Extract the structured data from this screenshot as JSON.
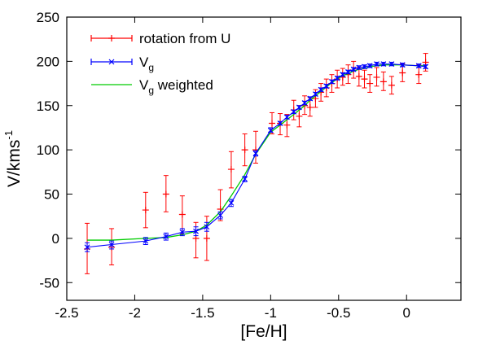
{
  "chart_data": {
    "type": "line",
    "xlabel": "[Fe/H]",
    "ylabel": {
      "base": "V/kms",
      "sup": "-1"
    },
    "xlim": [
      -2.5,
      0.4
    ],
    "ylim": [
      -70,
      250
    ],
    "xticks": [
      -2.5,
      -2,
      -1.5,
      -1,
      -0.5,
      0
    ],
    "xtick_labels": [
      "-2.5",
      "-2",
      "-1.5",
      "-1",
      "-0.5",
      "0"
    ],
    "yticks": [
      -50,
      0,
      50,
      100,
      150,
      200,
      250
    ],
    "ytick_labels": [
      "-50",
      "0",
      "50",
      "100",
      "150",
      "200",
      "250"
    ],
    "grid": false,
    "legend_position": "top-left",
    "series": [
      {
        "name": "rotation from U",
        "legend_label": {
          "base": "rotation from U",
          "sub": ""
        },
        "color": "#ff0000",
        "marker": "plus",
        "errorbars": true,
        "points": [
          {
            "x": -2.35,
            "y": -12,
            "lo": -40,
            "hi": 17
          },
          {
            "x": -2.17,
            "y": -10,
            "lo": -30,
            "hi": 11
          },
          {
            "x": -1.92,
            "y": 32,
            "lo": 12,
            "hi": 52
          },
          {
            "x": -1.77,
            "y": 50,
            "lo": 30,
            "hi": 71
          },
          {
            "x": -1.65,
            "y": 27,
            "lo": 5,
            "hi": 48
          },
          {
            "x": -1.55,
            "y": 0,
            "lo": -22,
            "hi": 18
          },
          {
            "x": -1.47,
            "y": 0,
            "lo": -25,
            "hi": 25
          },
          {
            "x": -1.37,
            "y": 33,
            "lo": 20,
            "hi": 55
          },
          {
            "x": -1.29,
            "y": 78,
            "lo": 57,
            "hi": 98
          },
          {
            "x": -1.19,
            "y": 100,
            "lo": 82,
            "hi": 118
          },
          {
            "x": -1.11,
            "y": 100,
            "lo": 85,
            "hi": 121
          },
          {
            "x": -0.99,
            "y": 130,
            "lo": 118,
            "hi": 142
          },
          {
            "x": -0.93,
            "y": 130,
            "lo": 117,
            "hi": 141
          },
          {
            "x": -0.88,
            "y": 128,
            "lo": 115,
            "hi": 140
          },
          {
            "x": -0.83,
            "y": 145,
            "lo": 134,
            "hi": 156
          },
          {
            "x": -0.79,
            "y": 138,
            "lo": 126,
            "hi": 150
          },
          {
            "x": -0.75,
            "y": 150,
            "lo": 140,
            "hi": 161
          },
          {
            "x": -0.71,
            "y": 148,
            "lo": 138,
            "hi": 159
          },
          {
            "x": -0.67,
            "y": 158,
            "lo": 148,
            "hi": 168
          },
          {
            "x": -0.63,
            "y": 165,
            "lo": 155,
            "hi": 175
          },
          {
            "x": -0.59,
            "y": 170,
            "lo": 160,
            "hi": 180
          },
          {
            "x": -0.55,
            "y": 175,
            "lo": 165,
            "hi": 185
          },
          {
            "x": -0.51,
            "y": 180,
            "lo": 170,
            "hi": 190
          },
          {
            "x": -0.47,
            "y": 182,
            "lo": 173,
            "hi": 192
          },
          {
            "x": -0.43,
            "y": 185,
            "lo": 175,
            "hi": 196
          },
          {
            "x": -0.39,
            "y": 190,
            "lo": 181,
            "hi": 200
          },
          {
            "x": -0.35,
            "y": 183,
            "lo": 172,
            "hi": 193
          },
          {
            "x": -0.31,
            "y": 180,
            "lo": 170,
            "hi": 190
          },
          {
            "x": -0.27,
            "y": 175,
            "lo": 165,
            "hi": 185
          },
          {
            "x": -0.22,
            "y": 182,
            "lo": 172,
            "hi": 193
          },
          {
            "x": -0.17,
            "y": 177,
            "lo": 167,
            "hi": 188
          },
          {
            "x": -0.11,
            "y": 173,
            "lo": 163,
            "hi": 183
          },
          {
            "x": -0.03,
            "y": 187,
            "lo": 177,
            "hi": 197
          },
          {
            "x": 0.09,
            "y": 185,
            "lo": 175,
            "hi": 196
          },
          {
            "x": 0.14,
            "y": 199,
            "lo": 189,
            "hi": 209
          }
        ]
      },
      {
        "name": "Vg",
        "legend_label": {
          "base": "V",
          "sub": "g"
        },
        "color": "#0000ff",
        "marker": "x",
        "errorbars": true,
        "points": [
          {
            "x": -2.35,
            "y": -10,
            "lo": -15,
            "hi": -5
          },
          {
            "x": -2.17,
            "y": -7,
            "lo": -12,
            "hi": -3
          },
          {
            "x": -1.92,
            "y": -3,
            "lo": -7,
            "hi": 1
          },
          {
            "x": -1.77,
            "y": 2,
            "lo": -2,
            "hi": 6
          },
          {
            "x": -1.65,
            "y": 7,
            "lo": 3,
            "hi": 11
          },
          {
            "x": -1.55,
            "y": 8,
            "lo": 3,
            "hi": 13
          },
          {
            "x": -1.47,
            "y": 13,
            "lo": 8,
            "hi": 18
          },
          {
            "x": -1.37,
            "y": 26,
            "lo": 22,
            "hi": 30
          },
          {
            "x": -1.29,
            "y": 40,
            "lo": 36,
            "hi": 44
          },
          {
            "x": -1.19,
            "y": 67,
            "lo": 64,
            "hi": 70
          },
          {
            "x": -1.11,
            "y": 96,
            "lo": 93,
            "hi": 99
          },
          {
            "x": -1.0,
            "y": 122,
            "lo": 120,
            "hi": 125
          },
          {
            "x": -0.93,
            "y": 130,
            "lo": 128,
            "hi": 132
          },
          {
            "x": -0.88,
            "y": 137,
            "lo": 135,
            "hi": 139
          },
          {
            "x": -0.83,
            "y": 143,
            "lo": 141,
            "hi": 145
          },
          {
            "x": -0.79,
            "y": 148,
            "lo": 146,
            "hi": 150
          },
          {
            "x": -0.75,
            "y": 153,
            "lo": 151,
            "hi": 155
          },
          {
            "x": -0.71,
            "y": 158,
            "lo": 156,
            "hi": 160
          },
          {
            "x": -0.67,
            "y": 163,
            "lo": 161,
            "hi": 165
          },
          {
            "x": -0.63,
            "y": 168,
            "lo": 166,
            "hi": 170
          },
          {
            "x": -0.59,
            "y": 172,
            "lo": 170,
            "hi": 174
          },
          {
            "x": -0.55,
            "y": 177,
            "lo": 175,
            "hi": 179
          },
          {
            "x": -0.51,
            "y": 181,
            "lo": 179,
            "hi": 183
          },
          {
            "x": -0.47,
            "y": 185,
            "lo": 183,
            "hi": 187
          },
          {
            "x": -0.43,
            "y": 188,
            "lo": 186,
            "hi": 190
          },
          {
            "x": -0.39,
            "y": 191,
            "lo": 189,
            "hi": 193
          },
          {
            "x": -0.35,
            "y": 193,
            "lo": 191,
            "hi": 195
          },
          {
            "x": -0.31,
            "y": 194,
            "lo": 192,
            "hi": 196
          },
          {
            "x": -0.27,
            "y": 195,
            "lo": 193,
            "hi": 197
          },
          {
            "x": -0.22,
            "y": 197,
            "lo": 195,
            "hi": 199
          },
          {
            "x": -0.17,
            "y": 197,
            "lo": 195,
            "hi": 199
          },
          {
            "x": -0.11,
            "y": 197,
            "lo": 195,
            "hi": 199
          },
          {
            "x": -0.03,
            "y": 196,
            "lo": 194,
            "hi": 198
          },
          {
            "x": 0.09,
            "y": 195,
            "lo": 193,
            "hi": 197
          },
          {
            "x": 0.14,
            "y": 194,
            "lo": 192,
            "hi": 196
          }
        ]
      },
      {
        "name": "Vg weighted",
        "legend_label": {
          "base": "V",
          "sub": "g",
          "suffix": " weighted"
        },
        "color": "#00cc00",
        "marker": "none",
        "errorbars": false,
        "points": [
          {
            "x": -2.35,
            "y": -2
          },
          {
            "x": -2.17,
            "y": -2
          },
          {
            "x": -1.92,
            "y": 0
          },
          {
            "x": -1.77,
            "y": 1
          },
          {
            "x": -1.65,
            "y": 4
          },
          {
            "x": -1.55,
            "y": 8
          },
          {
            "x": -1.47,
            "y": 15
          },
          {
            "x": -1.37,
            "y": 30
          },
          {
            "x": -1.29,
            "y": 48
          },
          {
            "x": -1.19,
            "y": 72
          },
          {
            "x": -1.11,
            "y": 95
          },
          {
            "x": -1.0,
            "y": 120
          },
          {
            "x": -0.93,
            "y": 128
          },
          {
            "x": -0.88,
            "y": 134
          },
          {
            "x": -0.83,
            "y": 140
          },
          {
            "x": -0.79,
            "y": 145
          },
          {
            "x": -0.75,
            "y": 150
          },
          {
            "x": -0.71,
            "y": 156
          },
          {
            "x": -0.67,
            "y": 161
          },
          {
            "x": -0.63,
            "y": 166
          },
          {
            "x": -0.59,
            "y": 171
          },
          {
            "x": -0.55,
            "y": 176
          },
          {
            "x": -0.51,
            "y": 180
          },
          {
            "x": -0.47,
            "y": 184
          },
          {
            "x": -0.43,
            "y": 186
          },
          {
            "x": -0.39,
            "y": 189
          },
          {
            "x": -0.35,
            "y": 191
          },
          {
            "x": -0.31,
            "y": 192
          },
          {
            "x": -0.27,
            "y": 194
          },
          {
            "x": -0.22,
            "y": 195
          },
          {
            "x": -0.17,
            "y": 196
          },
          {
            "x": -0.11,
            "y": 196
          },
          {
            "x": -0.03,
            "y": 196
          },
          {
            "x": 0.09,
            "y": 195
          },
          {
            "x": 0.14,
            "y": 195
          }
        ]
      }
    ]
  }
}
